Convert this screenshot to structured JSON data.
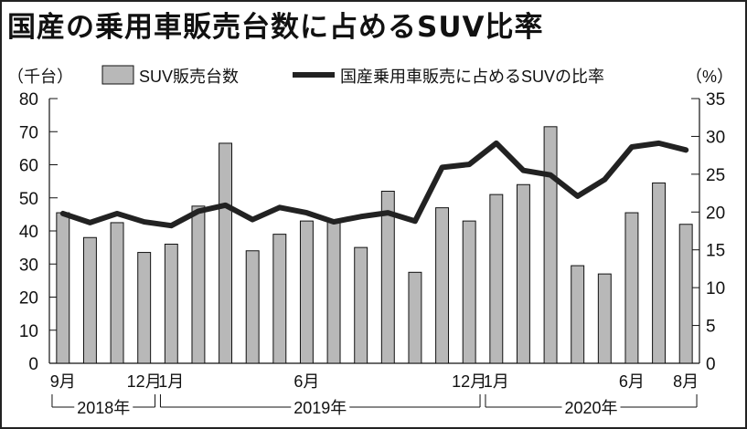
{
  "title": "国産の乗用車販売台数に占めるSUV比率",
  "chart_data": {
    "type": "bar+line",
    "title": "国産の乗用車販売台数に占めるSUV比率",
    "left_unit": "（千台）",
    "right_unit": "（%）",
    "ylim_left": [
      0,
      80
    ],
    "ylim_right": [
      0,
      35
    ],
    "left_ticks": [
      0,
      10,
      20,
      30,
      40,
      50,
      60,
      70,
      80
    ],
    "right_ticks": [
      0,
      5,
      10,
      15,
      20,
      25,
      30,
      35
    ],
    "grid": false,
    "legend_placement": "top",
    "categories": [
      "2018-09",
      "2018-10",
      "2018-11",
      "2018-12",
      "2019-01",
      "2019-02",
      "2019-03",
      "2019-04",
      "2019-05",
      "2019-06",
      "2019-07",
      "2019-08",
      "2019-09",
      "2019-10",
      "2019-11",
      "2019-12",
      "2020-01",
      "2020-02",
      "2020-03",
      "2020-04",
      "2020-05",
      "2020-06",
      "2020-07",
      "2020-08"
    ],
    "x_tick_labels": [
      {
        "index": 0,
        "label": "9月"
      },
      {
        "index": 3,
        "label": "12月"
      },
      {
        "index": 4,
        "label": "1月"
      },
      {
        "index": 9,
        "label": "6月"
      },
      {
        "index": 15,
        "label": "12月"
      },
      {
        "index": 16,
        "label": "1月"
      },
      {
        "index": 21,
        "label": "6月"
      },
      {
        "index": 23,
        "label": "8月"
      }
    ],
    "year_groups": [
      {
        "label": "2018年",
        "from": 0,
        "to": 3
      },
      {
        "label": "2019年",
        "from": 4,
        "to": 15
      },
      {
        "label": "2020年",
        "from": 16,
        "to": 23
      }
    ],
    "series": [
      {
        "name": "SUV販売台数",
        "type": "bar",
        "axis": "left",
        "color": "#b8b8b8",
        "values": [
          45.5,
          38,
          42.5,
          33.5,
          36,
          47.5,
          66.5,
          34,
          39,
          43,
          43,
          35,
          52,
          27.5,
          47,
          43,
          51,
          54,
          71.5,
          29.5,
          27,
          45.5,
          54.5,
          42
        ]
      },
      {
        "name": "国産乗用車販売に占めるSUVの比率",
        "type": "line",
        "axis": "right",
        "color": "#222222",
        "values": [
          19.8,
          18.6,
          19.8,
          18.7,
          18.2,
          20.1,
          20.9,
          19,
          20.6,
          19.9,
          18.7,
          19.4,
          19.9,
          18.8,
          25.9,
          26.3,
          29.1,
          25.5,
          24.9,
          22.1,
          24.3,
          28.6,
          29.1,
          28.2
        ]
      }
    ]
  }
}
